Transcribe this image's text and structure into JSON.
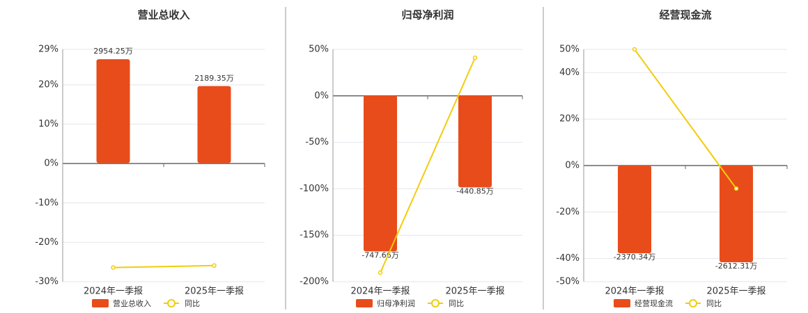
{
  "chart_data": [
    {
      "type": "bar",
      "title": "营业总收入",
      "categories": [
        "2024年一季报",
        "2025年一季报"
      ],
      "ylim": [
        -30,
        29
      ],
      "yticks": [
        {
          "value": 29,
          "label": "29%"
        },
        {
          "value": 20,
          "label": "20%"
        },
        {
          "value": 10,
          "label": "10%"
        },
        {
          "value": 0,
          "label": "0%"
        },
        {
          "value": -10,
          "label": "-10%"
        },
        {
          "value": -20,
          "label": "-20%"
        },
        {
          "value": -30,
          "label": "-30%"
        }
      ],
      "y2lim": [
        -3374,
        3233
      ],
      "grid": true,
      "series": [
        {
          "name": "营业总收入",
          "color": "#e84c1a",
          "axis": "y2",
          "values": [
            2954.25,
            2189.35
          ],
          "value_labels": [
            "2954.25万",
            "2189.35万"
          ]
        },
        {
          "name": "同比",
          "type": "line",
          "color": "#f2cc0c",
          "values": [
            -26.4,
            -25.9
          ]
        }
      ]
    },
    {
      "type": "bar",
      "title": "归母净利润",
      "categories": [
        "2024年一季报",
        "2025年一季报"
      ],
      "ylim": [
        -200,
        50
      ],
      "yticks": [
        {
          "value": 50,
          "label": "50%"
        },
        {
          "value": 0,
          "label": "0%"
        },
        {
          "value": -50,
          "label": "-50%"
        },
        {
          "value": -100,
          "label": "-100%"
        },
        {
          "value": -150,
          "label": "-150%"
        },
        {
          "value": -200,
          "label": "-200%"
        }
      ],
      "y2lim": [
        -893,
        220
      ],
      "grid": true,
      "series": [
        {
          "name": "归母净利润",
          "color": "#e84c1a",
          "axis": "y2",
          "values": [
            -747.66,
            -440.85
          ],
          "value_labels": [
            "-747.66万",
            "-440.85万"
          ]
        },
        {
          "name": "同比",
          "type": "line",
          "color": "#f2cc0c",
          "values": [
            -190.3,
            41.0
          ]
        }
      ]
    },
    {
      "type": "bar",
      "title": "经营现金流",
      "categories": [
        "2024年一季报",
        "2025年一季报"
      ],
      "ylim": [
        -50,
        50
      ],
      "yticks": [
        {
          "value": 50,
          "label": "50%"
        },
        {
          "value": 40,
          "label": "40%"
        },
        {
          "value": 20,
          "label": "20%"
        },
        {
          "value": 0,
          "label": "0%"
        },
        {
          "value": -20,
          "label": "-20%"
        },
        {
          "value": -40,
          "label": "-40%"
        },
        {
          "value": -50,
          "label": "-50%"
        }
      ],
      "y2lim": [
        -3139,
        3139
      ],
      "grid": true,
      "series": [
        {
          "name": "经营现金流",
          "color": "#e84c1a",
          "axis": "y2",
          "values": [
            -2370.34,
            -2612.31
          ],
          "value_labels": [
            "-2370.34万",
            "-2612.31万"
          ]
        },
        {
          "name": "同比",
          "type": "line",
          "color": "#f2cc0c",
          "values": [
            50,
            -9.9
          ]
        }
      ]
    }
  ]
}
